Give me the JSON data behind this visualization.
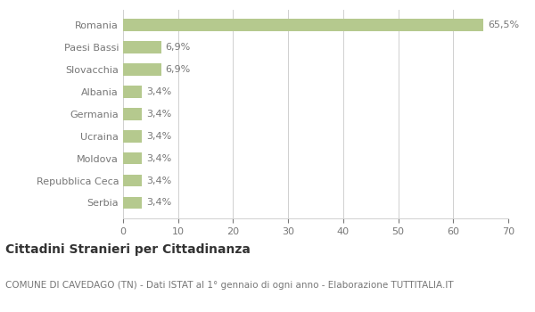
{
  "categories": [
    "Serbia",
    "Repubblica Ceca",
    "Moldova",
    "Ucraina",
    "Germania",
    "Albania",
    "Slovacchia",
    "Paesi Bassi",
    "Romania"
  ],
  "values": [
    3.4,
    3.4,
    3.4,
    3.4,
    3.4,
    3.4,
    6.9,
    6.9,
    65.5
  ],
  "labels": [
    "3,4%",
    "3,4%",
    "3,4%",
    "3,4%",
    "3,4%",
    "3,4%",
    "6,9%",
    "6,9%",
    "65,5%"
  ],
  "bar_color": "#b5c98e",
  "background_color": "#ffffff",
  "grid_color": "#d0d0d0",
  "text_color": "#777777",
  "label_color": "#777777",
  "xlim": [
    0,
    70
  ],
  "xticks": [
    0,
    10,
    20,
    30,
    40,
    50,
    60,
    70
  ],
  "title_main": "Cittadini Stranieri per Cittadinanza",
  "title_sub": "COMUNE DI CAVEDAGO (TN) - Dati ISTAT al 1° gennaio di ogni anno - Elaborazione TUTTITALIA.IT",
  "title_fontsize": 10,
  "subtitle_fontsize": 7.5,
  "bar_height": 0.55
}
